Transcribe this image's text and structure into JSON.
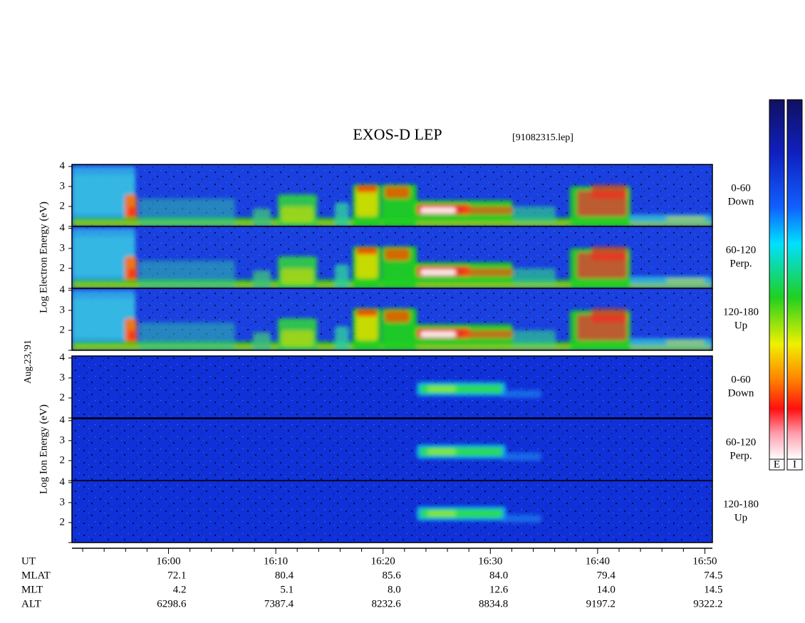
{
  "chart_data": {
    "type": "spectrogram",
    "title": "EXOS-D LEP",
    "file_label": "[91082315.lep]",
    "date_label": "Aug.23,'91",
    "groups": [
      {
        "label": "Log Electron Energy (eV)"
      },
      {
        "label": "Log Ion Energy (eV)"
      }
    ],
    "panels": [
      {
        "label": [
          "0-60",
          "Down"
        ]
      },
      {
        "label": [
          "60-120",
          "Perp."
        ]
      },
      {
        "label": [
          "120-180",
          "Up"
        ]
      },
      {
        "label": [
          "0-60",
          "Down"
        ]
      },
      {
        "label": [
          "60-120",
          "Perp."
        ]
      },
      {
        "label": [
          "120-180",
          "Up"
        ]
      }
    ],
    "ylim": [
      1,
      4.1
    ],
    "yticks": [
      2,
      3,
      4
    ],
    "xlim": [
      951,
      1010.7
    ],
    "xticks": [
      {
        "value": 960,
        "label": "16:00"
      },
      {
        "value": 970,
        "label": "16:10"
      },
      {
        "value": 980,
        "label": "16:20"
      },
      {
        "value": 990,
        "label": "16:30"
      },
      {
        "value": 1000,
        "label": "16:40"
      },
      {
        "value": 1010,
        "label": "16:50"
      }
    ],
    "xminorticks": [
      952,
      954,
      956,
      958,
      962,
      964,
      966,
      968,
      972,
      974,
      976,
      978,
      982,
      984,
      986,
      988,
      992,
      994,
      996,
      998,
      1002,
      1004,
      1006,
      1008
    ],
    "ephemeris": [
      {
        "label": "UT"
      },
      {
        "label": "MLAT",
        "values": [
          "72.1",
          "80.4",
          "85.6",
          "84.0",
          "79.4",
          "74.5"
        ]
      },
      {
        "label": "MLT",
        "values": [
          "4.2",
          "5.1",
          "8.0",
          "12.6",
          "14.0",
          "14.5"
        ]
      },
      {
        "label": "ALT",
        "values": [
          "6298.6",
          "7387.4",
          "8232.6",
          "8834.8",
          "9197.2",
          "9322.2"
        ]
      }
    ],
    "colorbars": [
      "E",
      "I"
    ]
  }
}
